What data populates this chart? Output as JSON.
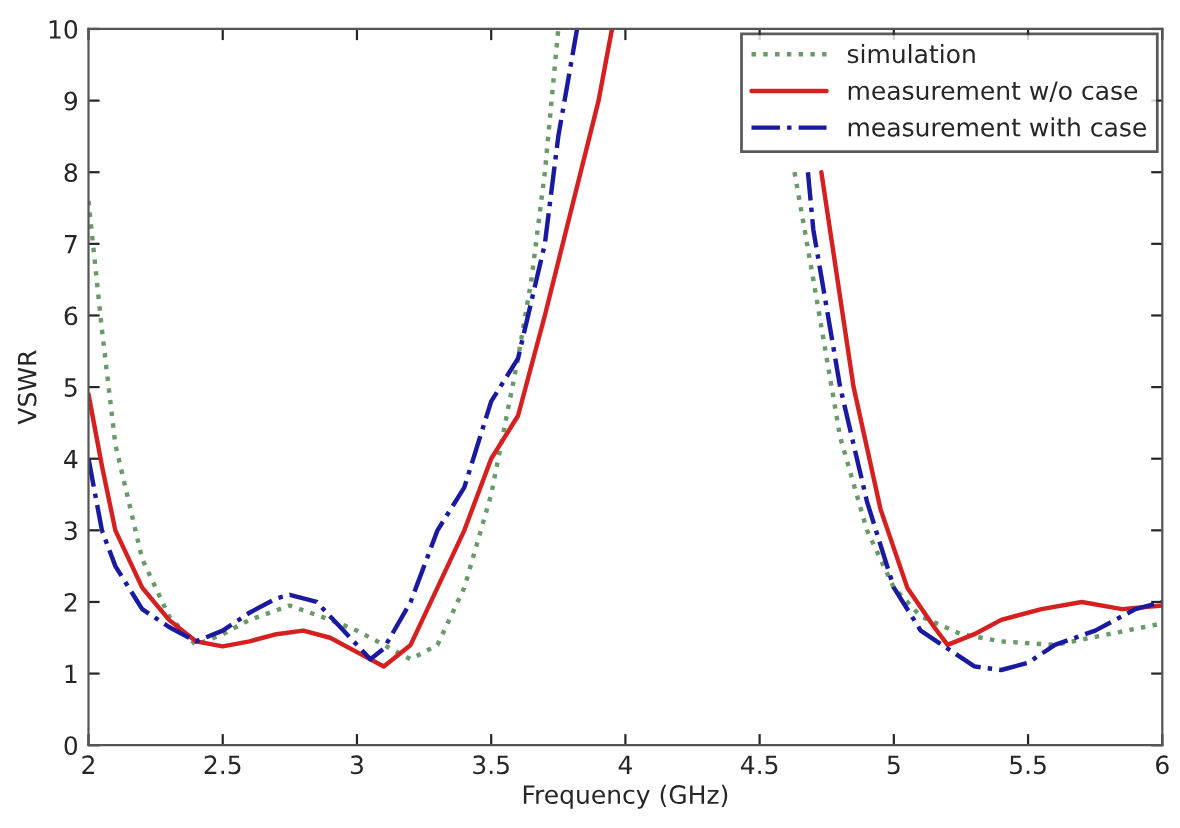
{
  "chart_data": {
    "type": "line",
    "xlabel": "Frequency (GHz)",
    "ylabel": "VSWR",
    "xlim": [
      2,
      6
    ],
    "ylim": [
      0,
      10
    ],
    "xticks": [
      2,
      2.5,
      3,
      3.5,
      4,
      4.5,
      5,
      5.5,
      6
    ],
    "yticks": [
      0,
      1,
      2,
      3,
      4,
      5,
      6,
      7,
      8,
      9,
      10
    ],
    "grid": false,
    "legend": "top right",
    "series": [
      {
        "name": "simulation",
        "color": "#6a9a6a",
        "line_style": "dotted",
        "x": [
          2.0,
          2.05,
          2.1,
          2.2,
          2.3,
          2.4,
          2.5,
          2.6,
          2.75,
          2.9,
          3.0,
          3.1,
          3.2,
          3.3,
          3.4,
          3.5,
          3.6,
          3.65,
          3.7,
          3.75,
          4.2,
          4.63,
          4.7,
          4.8,
          4.9,
          5.0,
          5.1,
          5.25,
          5.4,
          5.6,
          5.8,
          6.0
        ],
        "values": [
          7.6,
          5.8,
          4.2,
          2.6,
          1.8,
          1.4,
          1.55,
          1.75,
          1.95,
          1.75,
          1.6,
          1.4,
          1.2,
          1.4,
          2.2,
          3.5,
          5.4,
          6.5,
          8,
          10,
          null,
          8.0,
          6.5,
          4.3,
          3.0,
          2.2,
          1.8,
          1.55,
          1.45,
          1.4,
          1.55,
          1.7
        ]
      },
      {
        "name": "measurement w/o case",
        "color": "#d62020",
        "line_style": "solid",
        "x": [
          2.0,
          2.05,
          2.1,
          2.2,
          2.3,
          2.4,
          2.5,
          2.6,
          2.7,
          2.8,
          2.9,
          3.0,
          3.1,
          3.2,
          3.3,
          3.4,
          3.5,
          3.6,
          3.7,
          3.8,
          3.9,
          3.95,
          4.3,
          4.73,
          4.75,
          4.85,
          4.95,
          5.05,
          5.15,
          5.2,
          5.3,
          5.4,
          5.55,
          5.7,
          5.85,
          6.0
        ],
        "values": [
          4.9,
          3.9,
          3.0,
          2.2,
          1.75,
          1.45,
          1.38,
          1.45,
          1.55,
          1.6,
          1.5,
          1.3,
          1.1,
          1.4,
          2.2,
          3.0,
          4.0,
          4.6,
          6.0,
          7.5,
          9.0,
          10,
          null,
          8.0,
          7.5,
          5.0,
          3.3,
          2.2,
          1.65,
          1.4,
          1.55,
          1.75,
          1.9,
          2.0,
          1.9,
          1.95
        ]
      },
      {
        "name": "measurement with case",
        "color": "#1a1aa0",
        "line_style": "dashdot",
        "x": [
          2.0,
          2.05,
          2.1,
          2.2,
          2.3,
          2.4,
          2.5,
          2.6,
          2.7,
          2.75,
          2.85,
          2.95,
          3.05,
          3.1,
          3.2,
          3.3,
          3.4,
          3.5,
          3.6,
          3.7,
          3.75,
          3.82,
          4.2,
          4.68,
          4.7,
          4.8,
          4.9,
          5.0,
          5.1,
          5.2,
          5.3,
          5.4,
          5.5,
          5.6,
          5.75,
          5.9,
          6.0
        ],
        "values": [
          4.0,
          3.0,
          2.5,
          1.9,
          1.65,
          1.45,
          1.6,
          1.85,
          2.05,
          2.1,
          2.0,
          1.6,
          1.2,
          1.35,
          2.0,
          3.0,
          3.6,
          4.8,
          5.4,
          7.0,
          8.5,
          10,
          null,
          8.0,
          7.2,
          5.0,
          3.4,
          2.2,
          1.6,
          1.35,
          1.1,
          1.05,
          1.15,
          1.4,
          1.6,
          1.9,
          2.0
        ]
      }
    ]
  }
}
